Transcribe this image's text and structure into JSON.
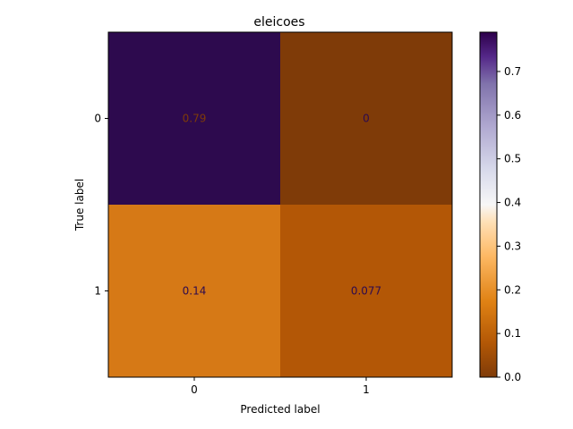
{
  "chart_data": {
    "type": "heatmap",
    "title": "eleicoes",
    "xlabel": "Predicted label",
    "ylabel": "True label",
    "x_categories": [
      "0",
      "1"
    ],
    "y_categories": [
      "0",
      "1"
    ],
    "values": [
      [
        0.79,
        0.0
      ],
      [
        0.14,
        0.077
      ]
    ],
    "cell_labels": [
      [
        "0.79",
        "0"
      ],
      [
        "0.14",
        "0.077"
      ]
    ],
    "cell_colors": [
      [
        "#2d0a4e",
        "#7f3b08"
      ],
      [
        "#d67916",
        "#b35706"
      ]
    ],
    "cell_text_colors": [
      [
        "#7f3b08",
        "#2d0a4e"
      ],
      [
        "#2d0a4e",
        "#2d0a4e"
      ]
    ],
    "colorbar": {
      "colormap": "PuOr",
      "range": [
        0.0,
        0.79
      ],
      "ticks": [
        "0.0",
        "0.1",
        "0.2",
        "0.3",
        "0.4",
        "0.5",
        "0.6",
        "0.7"
      ]
    }
  }
}
